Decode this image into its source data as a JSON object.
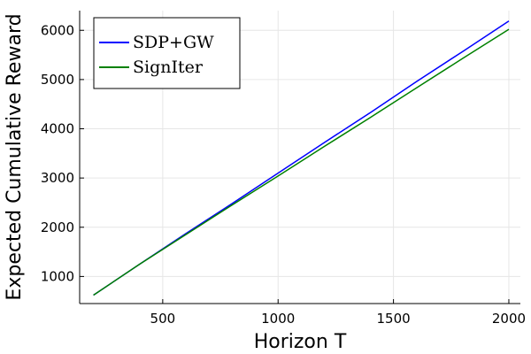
{
  "chart_data": {
    "type": "line",
    "xlabel": "Horizon T",
    "ylabel": "Expected Cumulative Reward",
    "xlim": [
      140,
      2050
    ],
    "ylim": [
      450,
      6400
    ],
    "xticks": [
      500,
      1000,
      1500,
      2000
    ],
    "xtick_labels": [
      "500",
      "1000",
      "1500",
      "2000"
    ],
    "yticks": [
      1000,
      2000,
      3000,
      4000,
      5000,
      6000
    ],
    "ytick_labels": [
      "1000",
      "2000",
      "3000",
      "4000",
      "5000",
      "6000"
    ],
    "grid": true,
    "legend_position": "top-left",
    "series": [
      {
        "name": "SDP+GW",
        "color": "#0000ff",
        "x": [
          200,
          400,
          600,
          800,
          1000,
          1200,
          1400,
          1600,
          1800,
          2000
        ],
        "y": [
          620,
          1250,
          1870,
          2480,
          3100,
          3720,
          4330,
          4960,
          5570,
          6190
        ]
      },
      {
        "name": "SignIter",
        "color": "#008000",
        "x": [
          200,
          400,
          600,
          800,
          1000,
          1200,
          1400,
          1600,
          1800,
          2000
        ],
        "y": [
          620,
          1250,
          1850,
          2450,
          3040,
          3640,
          4230,
          4830,
          5430,
          6020
        ]
      }
    ]
  }
}
